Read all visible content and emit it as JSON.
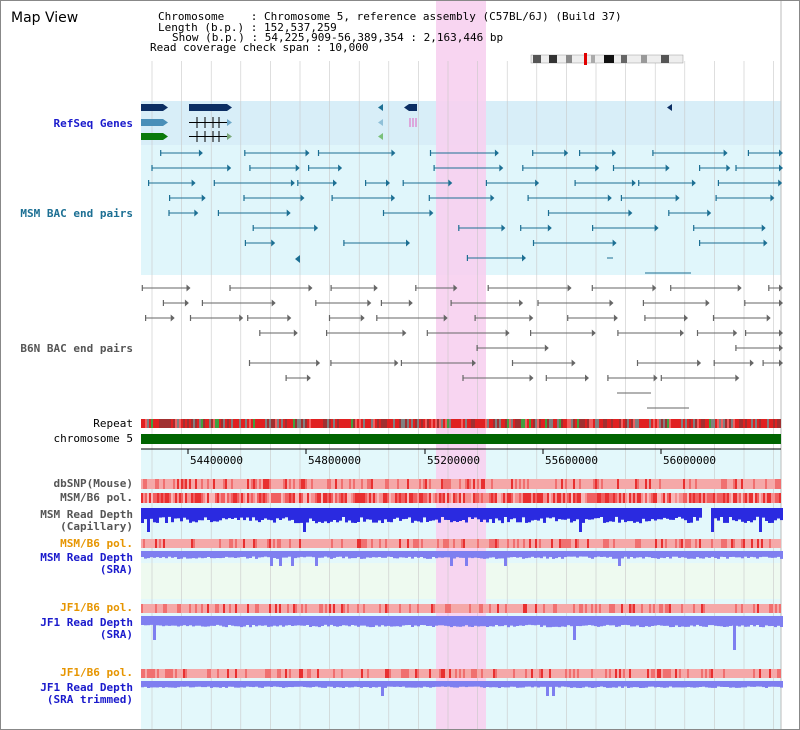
{
  "view": {
    "title": "Map View"
  },
  "info": {
    "line1": "Chromosome    : Chromosome 5, reference assembly (C57BL/6J) (Build 37)",
    "line2": "Length (b.p.) : 152,537,259",
    "line3": "Show (b.p.) : 54,225,909-56,389,354 : 2,163,446 bp",
    "line4": "Read coverage check span : 10,000"
  },
  "tracks": {
    "refseq": "RefSeq Genes",
    "msm_bac": "MSM BAC end pairs",
    "b6n_bac": "B6N BAC end pairs",
    "repeat": "Repeat",
    "chromosome": "chromosome 5",
    "dbsnp": "dbSNP(Mouse)",
    "msm_pol1": "MSM/B6 pol.",
    "msm_depth_cap": "MSM Read Depth",
    "msm_depth_cap_sub": "(Capillary)",
    "msm_pol2": "MSM/B6 pol.",
    "msm_depth_sra": "MSM Read Depth",
    "msm_depth_sra_sub": "(SRA)",
    "jf1_pol1": "JF1/B6 pol.",
    "jf1_depth_sra": "JF1 Read Depth",
    "jf1_depth_sra_sub": "(SRA)",
    "jf1_pol2": "JF1/B6 pol.",
    "jf1_depth_trim": "JF1 Read Depth",
    "jf1_depth_trim_sub": "(SRA trimmed)"
  },
  "axis": {
    "ticks": [
      "54400000",
      "54800000",
      "55200000",
      "55600000",
      "56000000"
    ]
  },
  "colors": {
    "highlight": "#f7d0ef",
    "panel_cyan": "#e0f6fb",
    "refseq_band": "#d8eef8",
    "chromosome": "#006400",
    "depth_blue": "#2a2ae0",
    "depth_light": "#7f7ff0"
  }
}
